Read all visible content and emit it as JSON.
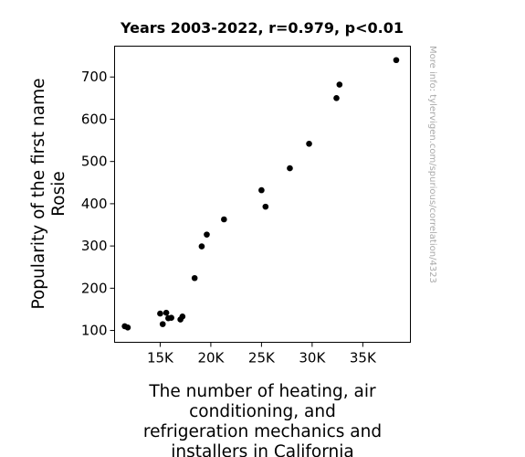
{
  "chart_data": {
    "type": "scatter",
    "title": "Years 2003-2022, r=0.979, p<0.01",
    "xlabel_lines": [
      "The number of heating, air",
      "conditioning, and",
      "refrigeration mechanics and",
      "installers in California"
    ],
    "ylabel_lines": [
      "Popularity of the first name",
      "Rosie"
    ],
    "xlim": [
      10500,
      39700
    ],
    "ylim": [
      72,
      773
    ],
    "xticks": [
      15000,
      20000,
      25000,
      30000,
      35000
    ],
    "xtick_labels": [
      "15K",
      "20K",
      "25K",
      "30K",
      "35K"
    ],
    "yticks": [
      100,
      200,
      300,
      400,
      500,
      600,
      700
    ],
    "ytick_labels": [
      "100",
      "200",
      "300",
      "400",
      "500",
      "600",
      "700"
    ],
    "grid": false,
    "point_color": "#000000",
    "points": [
      {
        "x": 11500,
        "y": 110
      },
      {
        "x": 11800,
        "y": 107
      },
      {
        "x": 15000,
        "y": 140
      },
      {
        "x": 15250,
        "y": 115
      },
      {
        "x": 15600,
        "y": 142
      },
      {
        "x": 15800,
        "y": 129
      },
      {
        "x": 16100,
        "y": 130
      },
      {
        "x": 17000,
        "y": 126
      },
      {
        "x": 17200,
        "y": 133
      },
      {
        "x": 18400,
        "y": 224
      },
      {
        "x": 19100,
        "y": 299
      },
      {
        "x": 19600,
        "y": 327
      },
      {
        "x": 21300,
        "y": 363
      },
      {
        "x": 25000,
        "y": 432
      },
      {
        "x": 25400,
        "y": 393
      },
      {
        "x": 27800,
        "y": 484
      },
      {
        "x": 29700,
        "y": 542
      },
      {
        "x": 32400,
        "y": 650
      },
      {
        "x": 32700,
        "y": 682
      },
      {
        "x": 38300,
        "y": 740
      }
    ]
  },
  "watermark": "More info: tylervigen.com/spurious/correlation/4323"
}
